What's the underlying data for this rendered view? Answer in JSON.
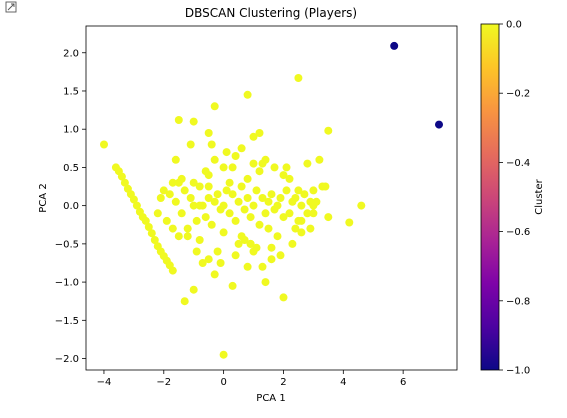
{
  "chart_data": {
    "type": "scatter",
    "title": "DBSCAN Clustering (Players)",
    "xlabel": "PCA 1",
    "ylabel": "PCA 2",
    "xlim": [
      -4.6,
      7.8
    ],
    "ylim": [
      -2.15,
      2.35
    ],
    "xticks": [
      -4,
      -2,
      0,
      2,
      4,
      6
    ],
    "yticks": [
      -2.0,
      -1.5,
      -1.0,
      -0.5,
      0.0,
      0.5,
      1.0,
      1.5,
      2.0
    ],
    "xtick_labels": [
      "−4",
      "−2",
      "0",
      "2",
      "4",
      "6"
    ],
    "ytick_labels": [
      "−2.0",
      "−1.5",
      "−1.0",
      "−0.5",
      "0.0",
      "0.5",
      "1.0",
      "1.5",
      "2.0"
    ],
    "grid": false,
    "legend": "none",
    "colormap": "plasma",
    "colorbar": {
      "label": "Cluster",
      "range": [
        -1.0,
        0.0
      ],
      "ticks": [
        0.0,
        -0.2,
        -0.4,
        -0.6,
        -0.8,
        -1.0
      ],
      "tick_labels": [
        "0.0",
        "−0.2",
        "−0.4",
        "−0.6",
        "−0.8",
        "−1.0"
      ]
    },
    "colors": {
      "cluster_0": "#f0f921",
      "noise": "#0d0887"
    },
    "series": [
      {
        "cluster": 0,
        "color": "#f0f921",
        "x": [
          -4.0,
          -3.6,
          -3.5,
          -3.4,
          -3.3,
          -3.2,
          -3.1,
          -3.0,
          -2.9,
          -2.8,
          -2.7,
          -2.6,
          -2.5,
          -2.4,
          -2.3,
          -2.2,
          -2.1,
          -2.0,
          -1.9,
          -1.8,
          -1.7,
          -2.1,
          -2.2,
          -2.0,
          -1.9,
          -1.8,
          -1.7,
          -1.6,
          -1.5,
          -1.4,
          -1.3,
          -1.2,
          -1.1,
          -1.0,
          -0.9,
          -0.8,
          -0.7,
          -0.6,
          -0.5,
          -0.4,
          -0.3,
          -0.2,
          -0.1,
          0.0,
          0.1,
          0.2,
          0.3,
          0.4,
          0.5,
          0.6,
          0.7,
          0.8,
          0.9,
          1.0,
          1.1,
          1.2,
          1.3,
          1.4,
          1.5,
          1.6,
          1.7,
          1.8,
          1.9,
          2.0,
          2.1,
          2.2,
          2.3,
          2.4,
          2.5,
          2.6,
          2.7,
          2.8,
          2.9,
          3.0,
          -0.5,
          0.3,
          0.8,
          1.2,
          -1.0,
          0.0,
          0.6,
          1.5,
          2.0,
          -0.3,
          0.5,
          1.0,
          1.8,
          -1.4,
          -0.8,
          0.2,
          0.9,
          1.4,
          2.2,
          2.6,
          -0.2,
          0.4,
          1.1,
          1.7,
          2.4,
          -1.2,
          -0.6,
          0.7,
          1.3,
          3.1,
          -1.6,
          -0.9,
          0.1,
          0.6,
          1.6,
          2.1,
          -0.4,
          0.8,
          1.9,
          2.8,
          3.3,
          -1.1,
          -0.1,
          1.0,
          2.5,
          3.0,
          -1.5,
          -0.3,
          0.8,
          1.2,
          2.5,
          -0.5,
          0.3,
          -1.3,
          -0.7,
          1.3,
          0.0,
          -1.0,
          3.5,
          3.2,
          3.4,
          3.0,
          2.3,
          2.9,
          4.2,
          4.6,
          3.5,
          2.0,
          1.4,
          -0.3,
          -1.0,
          -0.8,
          0.9,
          1.0,
          1.6,
          2.6,
          0.4,
          -0.5,
          -1.5,
          -1.7,
          -0.5,
          0.0
        ],
        "y": [
          0.8,
          0.5,
          0.45,
          0.38,
          0.3,
          0.22,
          0.15,
          0.08,
          0.0,
          -0.08,
          -0.15,
          -0.2,
          -0.28,
          -0.36,
          -0.45,
          -0.53,
          -0.6,
          -0.66,
          -0.72,
          -0.78,
          -0.85,
          0.1,
          -0.1,
          0.2,
          -0.2,
          0.15,
          -0.3,
          0.05,
          0.3,
          -0.1,
          0.2,
          -0.3,
          0.1,
          0.0,
          -0.2,
          0.25,
          0.0,
          -0.15,
          0.1,
          -0.25,
          0.05,
          0.15,
          -0.05,
          0.0,
          0.2,
          -0.1,
          0.15,
          -0.2,
          0.05,
          0.25,
          -0.05,
          0.1,
          -0.15,
          0.0,
          0.2,
          -0.25,
          0.1,
          -0.1,
          0.05,
          0.15,
          -0.05,
          0.0,
          0.1,
          -0.15,
          0.2,
          -0.1,
          0.05,
          0.1,
          -0.2,
          0.0,
          0.15,
          -0.1,
          0.05,
          0.0,
          0.4,
          0.5,
          0.35,
          0.45,
          0.3,
          -0.35,
          -0.4,
          -0.3,
          0.4,
          0.6,
          -0.5,
          0.55,
          -0.4,
          0.35,
          -0.45,
          0.3,
          -0.5,
          0.6,
          0.35,
          -0.35,
          -0.6,
          0.65,
          -0.55,
          0.5,
          -0.3,
          -0.4,
          0.45,
          -0.45,
          0.55,
          0.05,
          0.6,
          -0.6,
          0.7,
          0.75,
          -0.7,
          0.5,
          0.8,
          -0.8,
          -0.65,
          0.55,
          0.25,
          0.8,
          -0.75,
          0.9,
          0.2,
          -0.1,
          1.12,
          1.3,
          1.45,
          0.95,
          1.67,
          0.95,
          -1.05,
          -1.25,
          -0.75,
          -0.8,
          -1.95,
          1.1,
          0.98,
          0.6,
          0.25,
          0.2,
          -0.5,
          -0.3,
          -0.22,
          0.0,
          -0.15,
          -1.2,
          -1.0,
          -0.9,
          -1.1,
          0.0,
          -0.5,
          -0.6,
          -0.55,
          -0.2,
          -0.65,
          -0.7,
          -0.4,
          0.3,
          0.25,
          0.5
        ]
      },
      {
        "cluster": -1,
        "color": "#0d0887",
        "x": [
          5.7,
          7.2
        ],
        "y": [
          2.09,
          1.06
        ]
      }
    ]
  }
}
